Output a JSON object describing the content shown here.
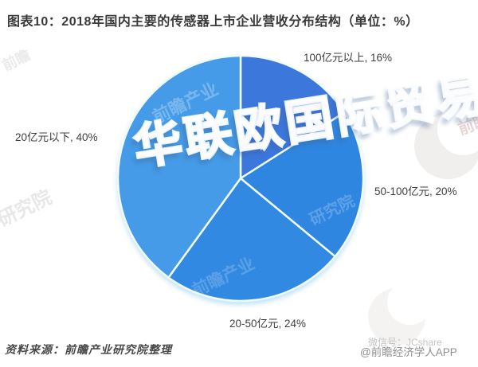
{
  "title": "图表10：2018年国内主要的传感器上市企业营收分布结构（单位：%）",
  "chart_data": {
    "type": "pie",
    "title": "2018年国内主要的传感器上市企业营收分布结构",
    "unit": "%",
    "start_angle_deg": 0,
    "direction": "clockwise",
    "segments": [
      {
        "label": "100亿元以上",
        "value": 16,
        "color": "#3C77DB"
      },
      {
        "label": "50-100亿元",
        "value": 20,
        "color": "#2F86E0"
      },
      {
        "label": "20-50亿元",
        "value": 24,
        "color": "#3189E1"
      },
      {
        "label": "20亿元以下",
        "value": 40,
        "color": "#459BE8"
      }
    ],
    "display_labels": [
      "100亿元以上, 16%",
      "50-100亿元, 20%",
      "20-50亿元, 24%",
      "20亿元以下, 40%"
    ],
    "divider_color": "#f2fcf7",
    "legend_position": "none",
    "grid": false
  },
  "source_note": "资料来源：前瞻产业研究院整理",
  "watermarks": {
    "overlay_text": "华联欧国际贸易",
    "brand_text_a": "前瞻产业",
    "brand_text_b": "研究院",
    "brand_text_c": "前瞻",
    "wechat_id": "微信号：JCshare",
    "app_credit": "@前瞻经济学人APP"
  }
}
